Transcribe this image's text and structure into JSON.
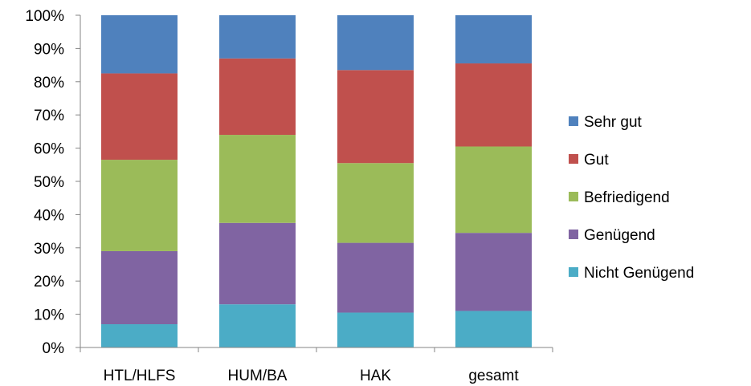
{
  "chart_data": {
    "type": "bar",
    "stacked": true,
    "percent_stacked": true,
    "title": "",
    "xlabel": "",
    "ylabel": "",
    "categories": [
      "HTL/HLFS",
      "HUM/BA",
      "HAK",
      "gesamt"
    ],
    "ylim": [
      0,
      100
    ],
    "y_ticks": [
      "0%",
      "10%",
      "20%",
      "30%",
      "40%",
      "50%",
      "60%",
      "70%",
      "80%",
      "90%",
      "100%"
    ],
    "grid": false,
    "legend_position": "right",
    "series": [
      {
        "name": "Nicht Genügend",
        "color": "#4BACC6",
        "values": [
          7,
          13,
          10.5,
          11
        ]
      },
      {
        "name": "Genügend",
        "color": "#8064A2",
        "values": [
          22,
          24.5,
          21,
          23.5
        ]
      },
      {
        "name": "Befriedigend",
        "color": "#9BBB59",
        "values": [
          27.5,
          26.5,
          24,
          26
        ]
      },
      {
        "name": "Gut",
        "color": "#C0504D",
        "values": [
          26,
          23,
          28,
          25
        ]
      },
      {
        "name": "Sehr gut",
        "color": "#4F81BD",
        "values": [
          17.5,
          13,
          16.5,
          14.5
        ]
      }
    ],
    "legend_order": [
      "Sehr gut",
      "Gut",
      "Befriedigend",
      "Genügend",
      "Nicht Genügend"
    ]
  }
}
